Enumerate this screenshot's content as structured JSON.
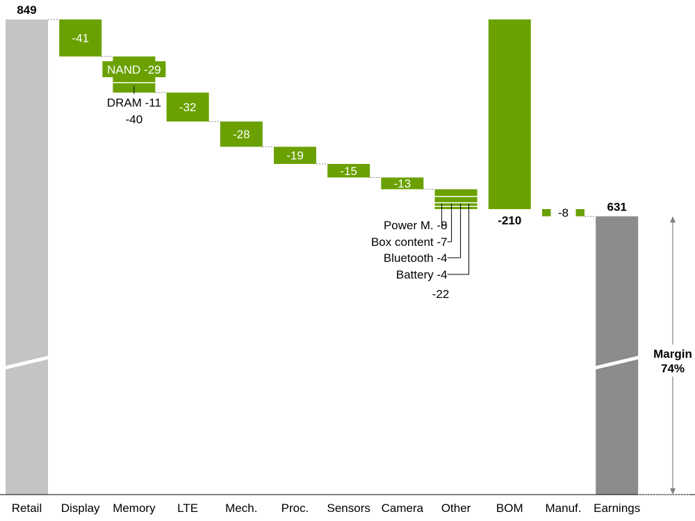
{
  "chart_data": {
    "type": "bar",
    "subtype": "waterfall",
    "categories": [
      "Retail",
      "Display",
      "Memory",
      "LTE",
      "Mech.",
      "Proc.",
      "Sensors",
      "Camera",
      "Other",
      "BOM",
      "Manuf.",
      "Earnings"
    ],
    "bars": [
      {
        "category": "Retail",
        "kind": "total",
        "value": 849,
        "label": "849",
        "axis_break": true
      },
      {
        "category": "Display",
        "kind": "delta",
        "value": -41,
        "label": "-41"
      },
      {
        "category": "Memory",
        "kind": "delta",
        "value": -40,
        "label": "-40",
        "segments": [
          {
            "name": "NAND",
            "value": -29,
            "label": "NAND -29"
          },
          {
            "name": "DRAM",
            "value": -11,
            "label": "DRAM -11"
          }
        ]
      },
      {
        "category": "LTE",
        "kind": "delta",
        "value": -32,
        "label": "-32"
      },
      {
        "category": "Mech.",
        "kind": "delta",
        "value": -28,
        "label": "-28"
      },
      {
        "category": "Proc.",
        "kind": "delta",
        "value": -19,
        "label": "-19"
      },
      {
        "category": "Sensors",
        "kind": "delta",
        "value": -15,
        "label": "-15"
      },
      {
        "category": "Camera",
        "kind": "delta",
        "value": -13,
        "label": "-13"
      },
      {
        "category": "Other",
        "kind": "delta",
        "value": -22,
        "label": "-22",
        "segments": [
          {
            "name": "Power M.",
            "value": -8,
            "label": "Power M. -8"
          },
          {
            "name": "Box content",
            "value": -7,
            "label": "Box content -7"
          },
          {
            "name": "Bluetooth",
            "value": -4,
            "label": "Bluetooth -4"
          },
          {
            "name": "Battery",
            "value": -4,
            "label": "Battery -4"
          }
        ]
      },
      {
        "category": "BOM",
        "kind": "subtotal_delta",
        "value": -210,
        "label": "-210"
      },
      {
        "category": "Manuf.",
        "kind": "delta",
        "value": -8,
        "label": "-8"
      },
      {
        "category": "Earnings",
        "kind": "total",
        "value": 631,
        "label": "631",
        "axis_break": true
      }
    ],
    "annotation": {
      "text_line1": "Margin",
      "text_line2": "74%"
    },
    "colors": {
      "delta": "#6aa100",
      "retail": "#c4c4c4",
      "earnings": "#8c8c8c",
      "axis": "#000000",
      "text": "#000000"
    }
  }
}
